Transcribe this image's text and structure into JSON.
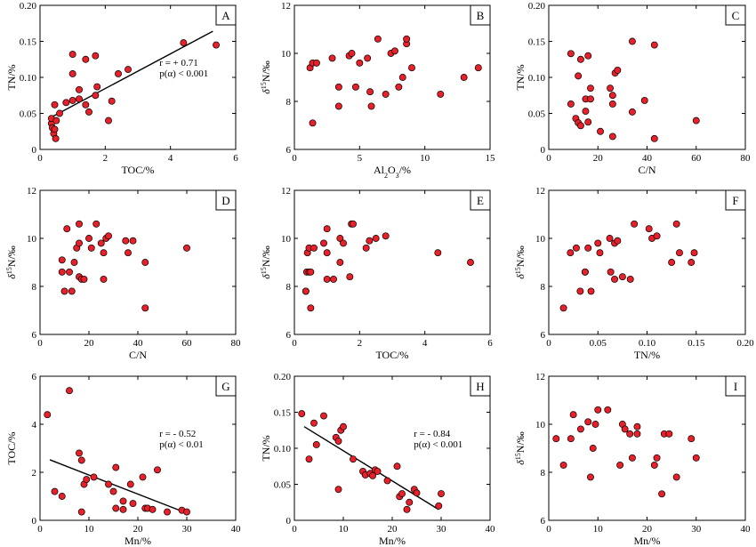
{
  "chart_data": [
    {
      "panel": "A",
      "type": "scatter",
      "xlabel": "TOC/%",
      "ylabel": "TN/%",
      "xlim": [
        0,
        6
      ],
      "ylim": [
        0,
        0.2
      ],
      "xticks": [
        0,
        2,
        4,
        6
      ],
      "yticks": [
        0,
        0.05,
        0.1,
        0.15,
        0.2
      ],
      "xticklabels": [
        "0",
        "2",
        "4",
        "6"
      ],
      "yticklabels": [
        "0",
        "0.05",
        "0.10",
        "0.15",
        "0.20"
      ],
      "fit": {
        "x": [
          0.4,
          5.3
        ],
        "y": [
          0.046,
          0.164
        ]
      },
      "stats": [
        "r = + 0.71",
        "p(α) < 0.001"
      ],
      "points": [
        [
          0.35,
          0.036
        ],
        [
          0.35,
          0.043
        ],
        [
          0.38,
          0.03
        ],
        [
          0.42,
          0.022
        ],
        [
          0.45,
          0.062
        ],
        [
          0.45,
          0.028
        ],
        [
          0.48,
          0.015
        ],
        [
          0.5,
          0.04
        ],
        [
          0.6,
          0.05
        ],
        [
          0.8,
          0.065
        ],
        [
          1.0,
          0.068
        ],
        [
          1.0,
          0.105
        ],
        [
          1.0,
          0.132
        ],
        [
          1.2,
          0.07
        ],
        [
          1.2,
          0.083
        ],
        [
          1.4,
          0.062
        ],
        [
          1.4,
          0.125
        ],
        [
          1.5,
          0.052
        ],
        [
          1.7,
          0.075
        ],
        [
          1.75,
          0.087
        ],
        [
          1.7,
          0.13
        ],
        [
          2.1,
          0.04
        ],
        [
          2.2,
          0.067
        ],
        [
          2.4,
          0.105
        ],
        [
          2.7,
          0.111
        ],
        [
          4.4,
          0.148
        ],
        [
          5.4,
          0.145
        ]
      ]
    },
    {
      "panel": "B",
      "type": "scatter",
      "xlabel": "Al2O3/%",
      "ylabel": "δ15N/‰",
      "xlim": [
        0,
        15
      ],
      "ylim": [
        6,
        12
      ],
      "xticks": [
        0,
        5,
        10,
        15
      ],
      "yticks": [
        6,
        8,
        10,
        12
      ],
      "xticklabels": [
        "0",
        "5",
        "10",
        "15"
      ],
      "yticklabels": [
        "6",
        "8",
        "10",
        "12"
      ],
      "points": [
        [
          1.2,
          9.4
        ],
        [
          1.4,
          7.1
        ],
        [
          1.4,
          9.6
        ],
        [
          1.7,
          9.6
        ],
        [
          2.9,
          9.8
        ],
        [
          3.4,
          8.6
        ],
        [
          3.4,
          7.8
        ],
        [
          4.2,
          9.9
        ],
        [
          4.4,
          10.0
        ],
        [
          4.7,
          8.6
        ],
        [
          5.0,
          9.6
        ],
        [
          5.6,
          9.8
        ],
        [
          5.8,
          8.4
        ],
        [
          5.9,
          7.8
        ],
        [
          6.4,
          10.6
        ],
        [
          7.0,
          8.3
        ],
        [
          7.4,
          10.0
        ],
        [
          7.7,
          10.1
        ],
        [
          8.0,
          8.6
        ],
        [
          8.3,
          9.0
        ],
        [
          8.6,
          10.4
        ],
        [
          8.6,
          10.6
        ],
        [
          9.0,
          9.4
        ],
        [
          11.2,
          8.3
        ],
        [
          13.0,
          9.0
        ],
        [
          14.1,
          9.4
        ]
      ]
    },
    {
      "panel": "C",
      "type": "scatter",
      "xlabel": "C/N",
      "ylabel": "TN/%",
      "xlim": [
        0,
        80
      ],
      "ylim": [
        0,
        0.2
      ],
      "xticks": [
        0,
        20,
        40,
        60,
        80
      ],
      "yticks": [
        0,
        0.05,
        0.1,
        0.15,
        0.2
      ],
      "xticklabels": [
        "0",
        "20",
        "40",
        "60",
        "80"
      ],
      "yticklabels": [
        "0",
        "0.05",
        "0.10",
        "0.15",
        "0.20"
      ],
      "points": [
        [
          9,
          0.063
        ],
        [
          9,
          0.133
        ],
        [
          11,
          0.043
        ],
        [
          12,
          0.037
        ],
        [
          12,
          0.102
        ],
        [
          13,
          0.033
        ],
        [
          13,
          0.125
        ],
        [
          15,
          0.053
        ],
        [
          15,
          0.07
        ],
        [
          16,
          0.038
        ],
        [
          16,
          0.13
        ],
        [
          17,
          0.085
        ],
        [
          17,
          0.07
        ],
        [
          21,
          0.025
        ],
        [
          25,
          0.085
        ],
        [
          26,
          0.018
        ],
        [
          26,
          0.063
        ],
        [
          26,
          0.075
        ],
        [
          27,
          0.106
        ],
        [
          28,
          0.11
        ],
        [
          34,
          0.15
        ],
        [
          34,
          0.052
        ],
        [
          39,
          0.068
        ],
        [
          43,
          0.015
        ],
        [
          43,
          0.145
        ],
        [
          60,
          0.04
        ]
      ]
    },
    {
      "panel": "D",
      "type": "scatter",
      "xlabel": "C/N",
      "ylabel": "δ15N/‰",
      "xlim": [
        0,
        80
      ],
      "ylim": [
        6,
        12
      ],
      "xticks": [
        0,
        20,
        40,
        60,
        80
      ],
      "yticks": [
        6,
        8,
        10,
        12
      ],
      "xticklabels": [
        "0",
        "20",
        "40",
        "60",
        "80"
      ],
      "yticklabels": [
        "6",
        "8",
        "10",
        "12"
      ],
      "points": [
        [
          9,
          8.6
        ],
        [
          9,
          9.1
        ],
        [
          10,
          7.8
        ],
        [
          11,
          10.4
        ],
        [
          12,
          8.6
        ],
        [
          13,
          7.8
        ],
        [
          14,
          9.0
        ],
        [
          15,
          9.6
        ],
        [
          16,
          9.8
        ],
        [
          16,
          8.4
        ],
        [
          16,
          10.6
        ],
        [
          17,
          8.3
        ],
        [
          18,
          8.3
        ],
        [
          20,
          10.0
        ],
        [
          21,
          9.6
        ],
        [
          23,
          10.6
        ],
        [
          25,
          9.8
        ],
        [
          26,
          9.4
        ],
        [
          27,
          10.0
        ],
        [
          26,
          8.3
        ],
        [
          28,
          10.1
        ],
        [
          35,
          9.9
        ],
        [
          36,
          9.4
        ],
        [
          38,
          9.9
        ],
        [
          43,
          7.1
        ],
        [
          43,
          9.0
        ],
        [
          60,
          9.6
        ]
      ]
    },
    {
      "panel": "E",
      "type": "scatter",
      "xlabel": "TOC/%",
      "ylabel": "δ15N/‰",
      "xlim": [
        0,
        6
      ],
      "ylim": [
        6,
        12
      ],
      "xticks": [
        0,
        2,
        4,
        6
      ],
      "yticks": [
        6,
        8,
        10,
        12
      ],
      "xticklabels": [
        "0",
        "2",
        "4",
        "6"
      ],
      "yticklabels": [
        "6",
        "8",
        "10",
        "12"
      ],
      "points": [
        [
          0.35,
          7.8
        ],
        [
          0.35,
          7.8
        ],
        [
          0.38,
          8.6
        ],
        [
          0.4,
          9.4
        ],
        [
          0.45,
          9.6
        ],
        [
          0.45,
          8.6
        ],
        [
          0.5,
          7.1
        ],
        [
          0.5,
          8.6
        ],
        [
          0.6,
          9.6
        ],
        [
          0.9,
          9.8
        ],
        [
          1.0,
          10.4
        ],
        [
          1.0,
          8.3
        ],
        [
          1.0,
          9.4
        ],
        [
          1.2,
          8.3
        ],
        [
          1.4,
          9.0
        ],
        [
          1.4,
          10.0
        ],
        [
          1.5,
          9.8
        ],
        [
          1.7,
          8.4
        ],
        [
          1.75,
          10.6
        ],
        [
          1.8,
          10.6
        ],
        [
          2.2,
          9.6
        ],
        [
          2.3,
          9.9
        ],
        [
          2.5,
          10.0
        ],
        [
          2.8,
          10.1
        ],
        [
          4.4,
          9.4
        ],
        [
          5.4,
          9.0
        ]
      ]
    },
    {
      "panel": "F",
      "type": "scatter",
      "xlabel": "TN/%",
      "ylabel": "δ15N/‰",
      "xlim": [
        0,
        0.2
      ],
      "ylim": [
        6,
        12
      ],
      "xticks": [
        0,
        0.05,
        0.1,
        0.15,
        0.2
      ],
      "yticks": [
        6,
        8,
        10,
        12
      ],
      "xticklabels": [
        "0",
        "0.05",
        "0.10",
        "0.15",
        "0.20"
      ],
      "yticklabels": [
        "6",
        "8",
        "10",
        "12"
      ],
      "points": [
        [
          0.015,
          7.1
        ],
        [
          0.022,
          9.4
        ],
        [
          0.028,
          9.6
        ],
        [
          0.032,
          7.8
        ],
        [
          0.037,
          8.6
        ],
        [
          0.037,
          8.6
        ],
        [
          0.04,
          9.6
        ],
        [
          0.043,
          7.8
        ],
        [
          0.05,
          9.8
        ],
        [
          0.052,
          9.4
        ],
        [
          0.062,
          10.0
        ],
        [
          0.063,
          8.6
        ],
        [
          0.067,
          8.3
        ],
        [
          0.067,
          9.8
        ],
        [
          0.07,
          9.9
        ],
        [
          0.075,
          8.4
        ],
        [
          0.083,
          8.3
        ],
        [
          0.087,
          10.6
        ],
        [
          0.102,
          10.4
        ],
        [
          0.105,
          10.0
        ],
        [
          0.11,
          10.1
        ],
        [
          0.125,
          9.0
        ],
        [
          0.13,
          10.6
        ],
        [
          0.133,
          9.4
        ],
        [
          0.145,
          9.0
        ],
        [
          0.148,
          9.4
        ]
      ]
    },
    {
      "panel": "G",
      "type": "scatter",
      "xlabel": "Mn/%",
      "ylabel": "TOC/%",
      "xlim": [
        0,
        40
      ],
      "ylim": [
        0,
        6
      ],
      "xticks": [
        0,
        10,
        20,
        30,
        40
      ],
      "yticks": [
        0,
        2,
        4,
        6
      ],
      "xticklabels": [
        "0",
        "10",
        "20",
        "30",
        "40"
      ],
      "yticklabels": [
        "0",
        "2",
        "4",
        "6"
      ],
      "fit": {
        "x": [
          2,
          30
        ],
        "y": [
          2.52,
          0.3
        ]
      },
      "stats": [
        "r = - 0.52",
        "p(α) < 0.01"
      ],
      "points": [
        [
          1.5,
          4.4
        ],
        [
          3,
          1.2
        ],
        [
          4.5,
          1.0
        ],
        [
          6,
          5.4
        ],
        [
          8,
          2.8
        ],
        [
          8.5,
          2.5
        ],
        [
          8.5,
          0.35
        ],
        [
          9,
          1.5
        ],
        [
          9.5,
          1.7
        ],
        [
          11,
          1.8
        ],
        [
          14,
          1.5
        ],
        [
          15,
          1.2
        ],
        [
          15.5,
          2.2
        ],
        [
          15.5,
          0.5
        ],
        [
          17,
          0.8
        ],
        [
          17,
          0.45
        ],
        [
          18.5,
          1.5
        ],
        [
          19,
          0.7
        ],
        [
          21,
          1.8
        ],
        [
          21.5,
          0.5
        ],
        [
          22,
          0.5
        ],
        [
          23,
          0.45
        ],
        [
          24,
          2.1
        ],
        [
          26,
          0.35
        ],
        [
          29,
          0.42
        ],
        [
          30,
          0.35
        ]
      ]
    },
    {
      "panel": "H",
      "type": "scatter",
      "xlabel": "Mn/%",
      "ylabel": "TN/%",
      "xlim": [
        0,
        40
      ],
      "ylim": [
        0,
        0.2
      ],
      "xticks": [
        0,
        10,
        20,
        30,
        40
      ],
      "yticks": [
        0,
        0.05,
        0.1,
        0.15,
        0.2
      ],
      "xticklabels": [
        "0",
        "10",
        "20",
        "30",
        "40"
      ],
      "yticklabels": [
        "0",
        "0.05",
        "0.10",
        "0.15",
        "0.20"
      ],
      "fit": {
        "x": [
          2,
          29.5
        ],
        "y": [
          0.13,
          0.015
        ]
      },
      "stats": [
        "r = - 0.84",
        "p(α) < 0.001"
      ],
      "points": [
        [
          1.5,
          0.148
        ],
        [
          3,
          0.085
        ],
        [
          4,
          0.135
        ],
        [
          4.5,
          0.105
        ],
        [
          6,
          0.145
        ],
        [
          8.5,
          0.115
        ],
        [
          9,
          0.043
        ],
        [
          9,
          0.11
        ],
        [
          9.5,
          0.125
        ],
        [
          10,
          0.13
        ],
        [
          12,
          0.085
        ],
        [
          14,
          0.068
        ],
        [
          14.5,
          0.063
        ],
        [
          15.5,
          0.065
        ],
        [
          16,
          0.062
        ],
        [
          16.5,
          0.07
        ],
        [
          17,
          0.068
        ],
        [
          19,
          0.055
        ],
        [
          21,
          0.075
        ],
        [
          21.5,
          0.033
        ],
        [
          22,
          0.037
        ],
        [
          23,
          0.015
        ],
        [
          23.5,
          0.025
        ],
        [
          24.5,
          0.043
        ],
        [
          25,
          0.038
        ],
        [
          29.5,
          0.02
        ],
        [
          30,
          0.037
        ]
      ]
    },
    {
      "panel": "I",
      "type": "scatter",
      "xlabel": "Mn/%",
      "ylabel": "δ15N/‰",
      "xlim": [
        0,
        40
      ],
      "ylim": [
        6,
        12
      ],
      "xticks": [
        0,
        10,
        20,
        30,
        40
      ],
      "yticks": [
        6,
        8,
        10,
        12
      ],
      "xticklabels": [
        "0",
        "10",
        "20",
        "30",
        "40"
      ],
      "yticklabels": [
        "6",
        "8",
        "10",
        "12"
      ],
      "points": [
        [
          1.5,
          9.4
        ],
        [
          3,
          8.3
        ],
        [
          4.5,
          9.4
        ],
        [
          5,
          10.4
        ],
        [
          6.5,
          9.8
        ],
        [
          8,
          10.1
        ],
        [
          8.5,
          7.8
        ],
        [
          9,
          9.0
        ],
        [
          9.5,
          10.0
        ],
        [
          10,
          10.6
        ],
        [
          12,
          10.6
        ],
        [
          14.5,
          8.3
        ],
        [
          15,
          10.0
        ],
        [
          15.5,
          9.8
        ],
        [
          16.5,
          9.6
        ],
        [
          17,
          8.6
        ],
        [
          18,
          9.6
        ],
        [
          18,
          9.9
        ],
        [
          21.5,
          8.3
        ],
        [
          22,
          8.6
        ],
        [
          23,
          7.1
        ],
        [
          23.5,
          9.6
        ],
        [
          24.5,
          9.6
        ],
        [
          26,
          7.8
        ],
        [
          29,
          9.4
        ],
        [
          30,
          8.6
        ]
      ]
    }
  ]
}
